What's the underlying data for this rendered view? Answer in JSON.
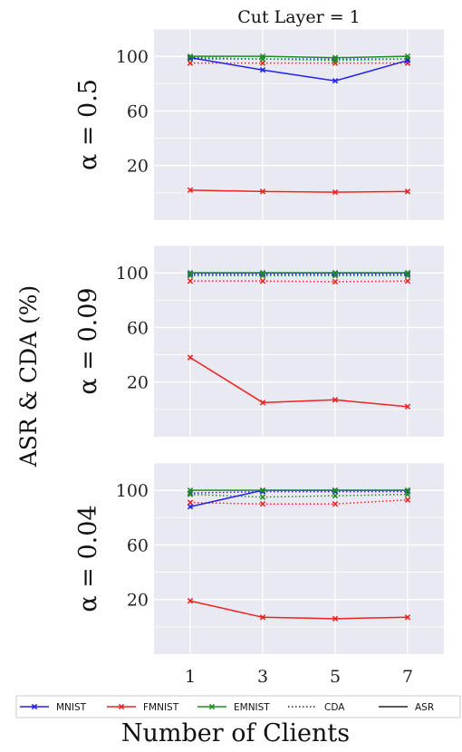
{
  "figure": {
    "title": "Cut Layer = 1",
    "ylabel": "ASR & CDA (%)",
    "xlabel": "Number of Clients"
  },
  "colors": {
    "background": "#e9e9f1",
    "grid": "#ffffff",
    "MNIST": "#2222ee",
    "FMNIST": "#ee2222",
    "EMNIST": "#228b22",
    "neutral": "#222222"
  },
  "legend": {
    "placement": "bottom",
    "items": [
      {
        "label": "MNIST",
        "color_key": "MNIST",
        "style": "solid",
        "marker": "x"
      },
      {
        "label": "FMNIST",
        "color_key": "FMNIST",
        "style": "solid",
        "marker": "x"
      },
      {
        "label": "EMNIST",
        "color_key": "EMNIST",
        "style": "solid",
        "marker": "x"
      },
      {
        "label": "CDA",
        "color_key": "neutral",
        "style": "dotted",
        "marker": ""
      },
      {
        "label": "ASR",
        "color_key": "neutral",
        "style": "solid",
        "marker": ""
      }
    ]
  },
  "chart_data": [
    {
      "type": "line",
      "panel_label": "α = 0.5",
      "x": [
        1,
        3,
        5,
        7
      ],
      "xticks": [
        "1",
        "3",
        "5",
        "7"
      ],
      "yticks": [
        20,
        60,
        100
      ],
      "ylim": [
        -20,
        120
      ],
      "xlim": [
        0,
        8
      ],
      "grid": true,
      "series": [
        {
          "name": "MNIST",
          "metric": "CDA",
          "values": [
            99,
            98,
            98,
            98
          ]
        },
        {
          "name": "MNIST",
          "metric": "ASR",
          "values": [
            99,
            90,
            82,
            97
          ]
        },
        {
          "name": "FMNIST",
          "metric": "CDA",
          "values": [
            95,
            95,
            95,
            95
          ]
        },
        {
          "name": "FMNIST",
          "metric": "ASR",
          "values": [
            2,
            1,
            0.5,
            1
          ]
        },
        {
          "name": "EMNIST",
          "metric": "CDA",
          "values": [
            98,
            98,
            97,
            98
          ]
        },
        {
          "name": "EMNIST",
          "metric": "ASR",
          "values": [
            100,
            100,
            99,
            100
          ]
        }
      ]
    },
    {
      "type": "line",
      "panel_label": "α = 0.09",
      "x": [
        1,
        3,
        5,
        7
      ],
      "xticks": [
        "1",
        "3",
        "5",
        "7"
      ],
      "yticks": [
        20,
        60,
        100
      ],
      "ylim": [
        -20,
        120
      ],
      "xlim": [
        0,
        8
      ],
      "grid": true,
      "series": [
        {
          "name": "MNIST",
          "metric": "CDA",
          "values": [
            99,
            99,
            99,
            99
          ]
        },
        {
          "name": "MNIST",
          "metric": "ASR",
          "values": [
            100,
            100,
            100,
            100
          ]
        },
        {
          "name": "FMNIST",
          "metric": "CDA",
          "values": [
            94,
            94,
            93.5,
            94
          ]
        },
        {
          "name": "FMNIST",
          "metric": "ASR",
          "values": [
            38,
            5,
            7,
            2
          ]
        },
        {
          "name": "EMNIST",
          "metric": "CDA",
          "values": [
            98,
            98,
            98,
            98
          ]
        },
        {
          "name": "EMNIST",
          "metric": "ASR",
          "values": [
            100,
            100,
            100,
            100
          ]
        }
      ]
    },
    {
      "type": "line",
      "panel_label": "α = 0.04",
      "x": [
        1,
        3,
        5,
        7
      ],
      "xticks": [
        "1",
        "3",
        "5",
        "7"
      ],
      "yticks": [
        20,
        60,
        100
      ],
      "ylim": [
        -20,
        120
      ],
      "xlim": [
        0,
        8
      ],
      "grid": true,
      "series": [
        {
          "name": "MNIST",
          "metric": "CDA",
          "values": [
            98,
            99,
            99,
            99
          ]
        },
        {
          "name": "MNIST",
          "metric": "ASR",
          "values": [
            88,
            100,
            100,
            100
          ]
        },
        {
          "name": "FMNIST",
          "metric": "CDA",
          "values": [
            91,
            90,
            90,
            93
          ]
        },
        {
          "name": "FMNIST",
          "metric": "ASR",
          "values": [
            19,
            7,
            6,
            7
          ]
        },
        {
          "name": "EMNIST",
          "metric": "CDA",
          "values": [
            97,
            95,
            96,
            97
          ]
        },
        {
          "name": "EMNIST",
          "metric": "ASR",
          "values": [
            100,
            100,
            100,
            100
          ]
        }
      ]
    }
  ]
}
